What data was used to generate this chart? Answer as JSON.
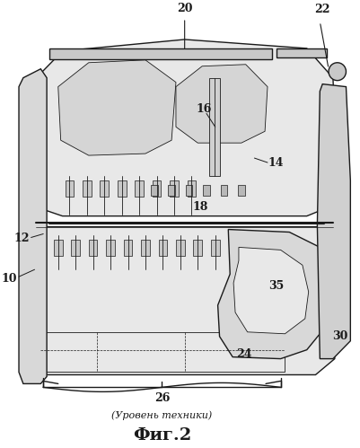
{
  "title": "Фиг.2",
  "subtitle": "(Уровень техники)",
  "label_26": "26",
  "label_20": "20",
  "label_22": "22",
  "label_16": "16",
  "label_14": "14",
  "label_18": "18",
  "label_10": "10",
  "label_12": "12",
  "label_35": "35",
  "label_24": "24",
  "label_30": "30",
  "bg_color": "#ffffff",
  "line_color": "#1a1a1a",
  "fig_width": 4.02,
  "fig_height": 4.99,
  "dpi": 100
}
